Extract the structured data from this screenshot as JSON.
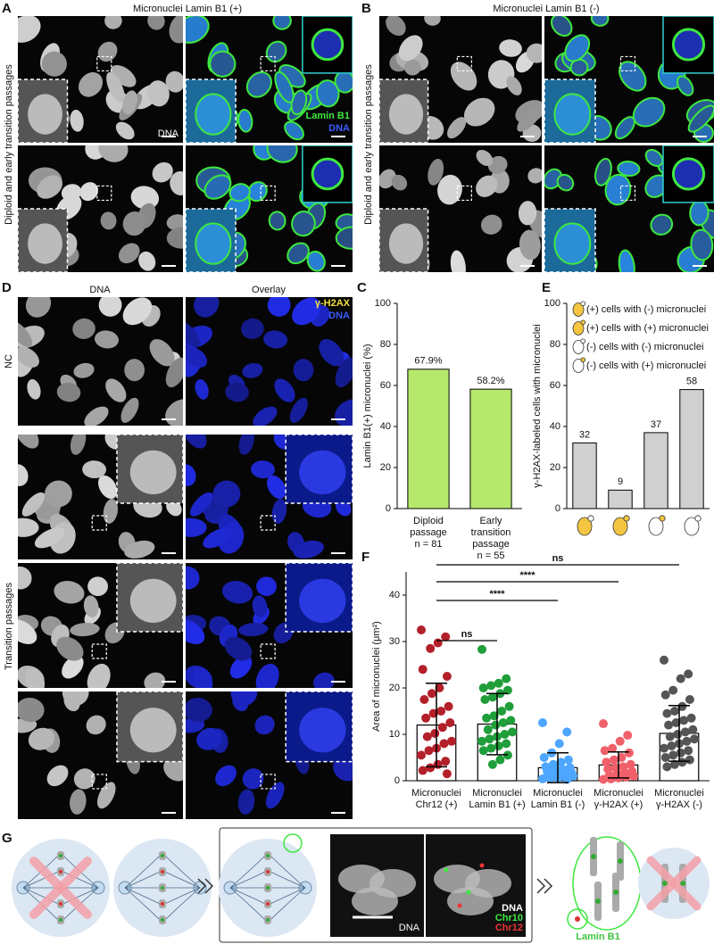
{
  "panels": {
    "A": {
      "label": "A",
      "title": "Micronuclei Lamin B1 (+)",
      "side_label": "Diploid and early transition passages",
      "channel_dna": "DNA",
      "channel_green": "Lamin B1",
      "channel_blue": "DNA"
    },
    "B": {
      "label": "B",
      "title": "Micronuclei Lamin B1 (-)",
      "side_label": "Diploid and early transition passages"
    },
    "D": {
      "label": "D",
      "col1": "DNA",
      "col2": "Overlay",
      "channel_yellow": "γ-H2AX",
      "channel_blue": "DNA",
      "row_nc": "NC",
      "row_transition": "Transition passages"
    },
    "G": {
      "label": "G",
      "image_label": "DNA",
      "legend": [
        "DNA",
        "Chr10",
        "Chr12"
      ],
      "lamin": "Lamin B1"
    }
  },
  "chart_data": [
    {
      "type": "bar",
      "label": "C",
      "ylabel": "Lamin B1(+) micronuclei (%)",
      "categories": [
        [
          "Diploid",
          "passage",
          "n = 81"
        ],
        [
          "Early",
          "transition",
          "passage",
          "n = 55"
        ]
      ],
      "values": [
        67.9,
        58.2
      ],
      "value_labels": [
        "67.9%",
        "58.2%"
      ],
      "color": "#b5e86b",
      "ylim": [
        0,
        100
      ],
      "yticks": [
        0,
        20,
        40,
        60,
        80,
        100
      ]
    },
    {
      "type": "bar",
      "label": "E",
      "ylabel": "γ-H2AX-labeled cells with micronuclei",
      "values": [
        32,
        9,
        37,
        58
      ],
      "color": "#d0d0d0",
      "cell_colors": [
        "#f5c542",
        "#f5c542",
        "#ffffff",
        "#ffffff"
      ],
      "micronucleus_colors": [
        "#ffffff",
        "#f5c542",
        "#f5c542",
        "#ffffff"
      ],
      "legend": [
        "(+) cells with (-) micronuclei",
        "(+) cells with (+) micronuclei",
        "(-) cells with (-) micronuclei",
        "(-) cells with (+) micronuclei"
      ],
      "legend_cell_colors": [
        "#f5c542",
        "#f5c542",
        "#ffffff",
        "#ffffff"
      ],
      "legend_micronucleus_colors": [
        "#ffffff",
        "#f5c542",
        "#ffffff",
        "#f5c542"
      ],
      "ylim": [
        0,
        100
      ],
      "yticks": [
        0,
        20,
        40,
        60,
        80,
        100
      ]
    },
    {
      "type": "dotbar",
      "label": "F",
      "ylabel": "Area of micronuclei (μm²)",
      "categories": [
        [
          "Micronuclei",
          "Chr12 (+)"
        ],
        [
          "Micronuclei",
          "Lamin B1 (+)"
        ],
        [
          "Micronuclei",
          "Lamin B1 (-)"
        ],
        [
          "Micronuclei",
          "γ-H2AX (+)"
        ],
        [
          "Micronuclei",
          "γ-H2AX (-)"
        ]
      ],
      "colors": [
        "#b3202a",
        "#1f9e3a",
        "#4da6ff",
        "#f0606a",
        "#555555"
      ],
      "means": [
        12,
        12.2,
        2.8,
        3.4,
        10.2
      ],
      "sd": [
        9,
        6.6,
        3.2,
        2.8,
        6
      ],
      "points": [
        [
          32.5,
          31,
          29.7,
          28.5,
          24,
          22.5,
          20,
          18.8,
          17.5,
          16,
          15,
          14.5,
          13.5,
          12.5,
          11.5,
          10.2,
          9.5,
          8.5,
          8,
          7,
          6.5,
          5.5,
          4.2,
          3.5,
          2.8,
          2.2,
          1.5
        ],
        [
          28.3,
          22,
          21,
          20.5,
          20,
          19.5,
          18.8,
          18,
          17.5,
          16,
          15,
          14,
          13.5,
          13,
          12.5,
          12,
          11,
          10.5,
          10,
          9.5,
          9,
          8.5,
          8,
          7.5,
          7,
          6.5,
          5.5,
          4.5,
          3.5
        ],
        [
          12.5,
          10.5,
          8,
          6,
          5,
          4.5,
          4,
          3.5,
          3,
          2.8,
          2.5,
          2.2,
          2,
          1.8,
          1.5,
          1.3,
          1.2,
          1,
          0.8,
          0.6,
          0.5,
          0.4,
          0.3
        ],
        [
          12.3,
          9.8,
          8.5,
          7,
          6.5,
          6,
          5,
          4.5,
          4,
          3.5,
          3,
          2.8,
          2.5,
          2,
          1.8,
          1.5,
          1.2,
          1,
          0.8,
          0.6,
          0.4,
          0.3
        ],
        [
          26,
          23,
          22,
          19.5,
          18.5,
          17.5,
          16,
          15,
          14.5,
          13.5,
          13,
          12.5,
          12,
          11,
          10.5,
          10,
          9.5,
          9,
          8.5,
          8,
          7.5,
          7,
          6.5,
          6,
          5.5,
          5,
          4.5,
          4,
          3.5,
          3
        ]
      ],
      "comparisons": [
        {
          "label": "ns",
          "groups": [
            0,
            4
          ]
        },
        {
          "label": "****",
          "groups": [
            0,
            3
          ]
        },
        {
          "label": "****",
          "groups": [
            0,
            2
          ]
        },
        {
          "label": "ns",
          "groups": [
            0,
            1
          ]
        }
      ],
      "ylim": [
        0,
        45
      ],
      "yticks": [
        0,
        10,
        20,
        30,
        40
      ]
    }
  ]
}
